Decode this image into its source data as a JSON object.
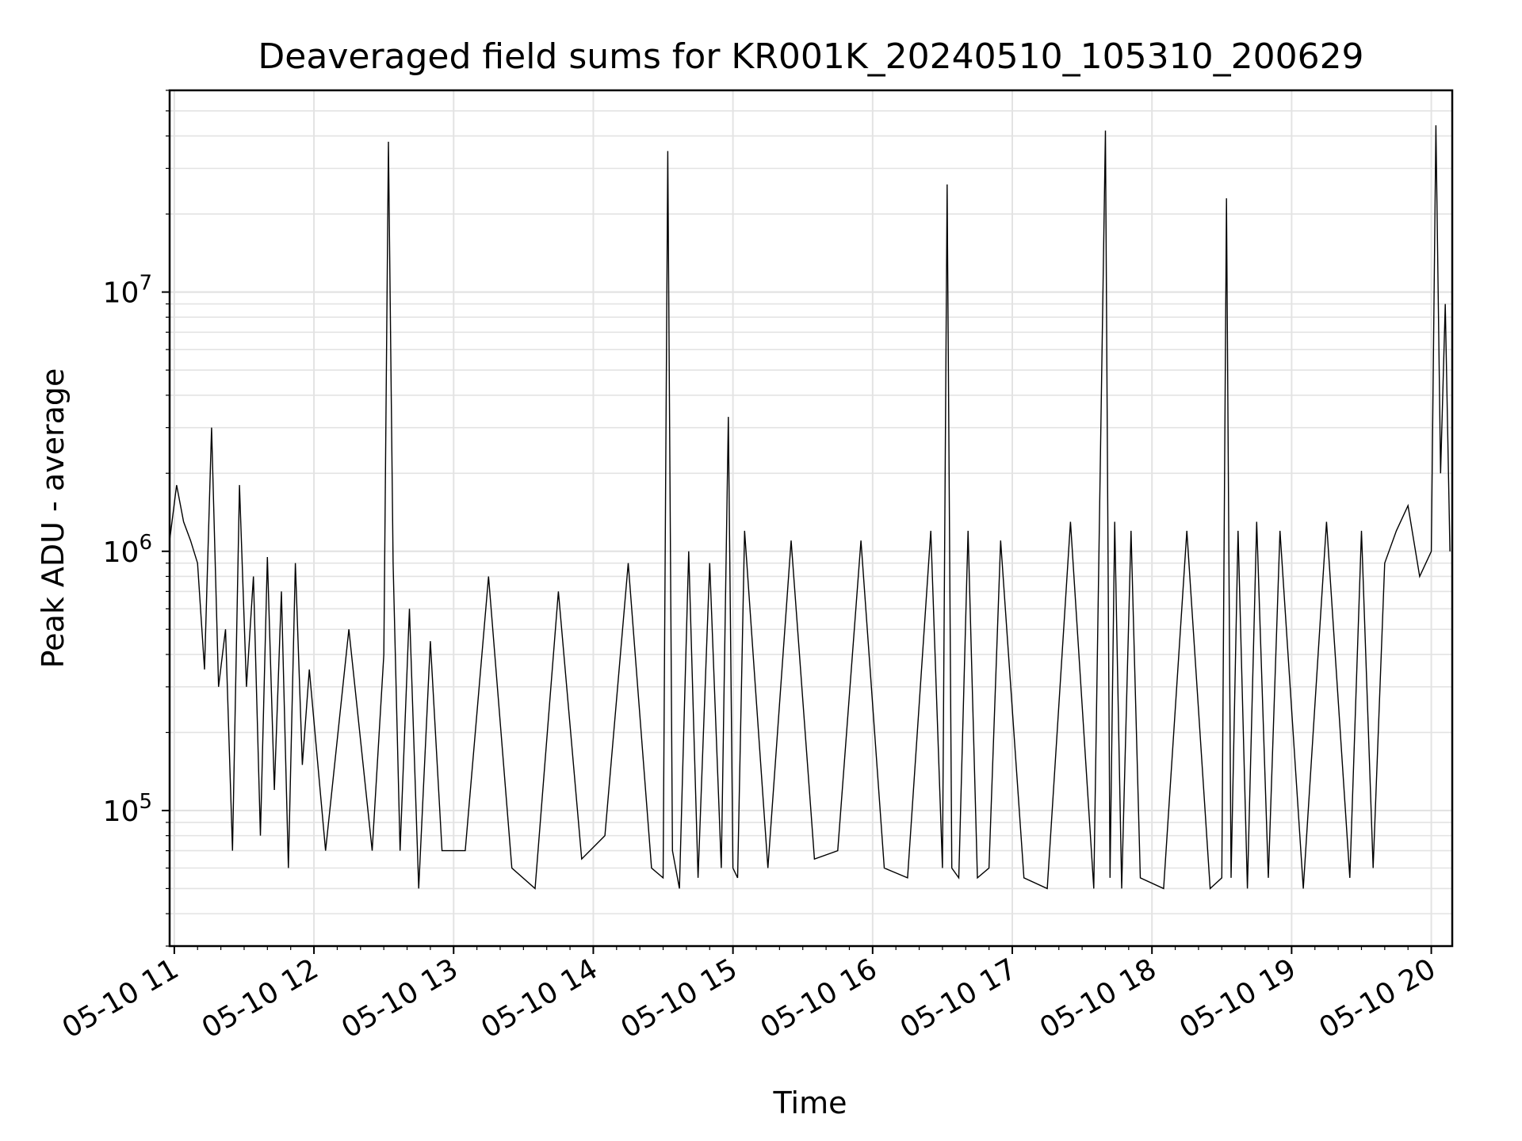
{
  "chart_data": {
    "type": "line",
    "title": "Deaveraged field sums for KR001K_20240510_105310_200629",
    "xlabel": "Time",
    "ylabel": "Peak ADU - average",
    "yscale": "log",
    "ylim": [
      30000,
      60000000
    ],
    "xlim": [
      "2024-05-10T10:58",
      "2024-05-10T20:09"
    ],
    "grid": true,
    "line_color": "#000000",
    "x_ticks": [
      {
        "label": "05-10 11",
        "hour": 11
      },
      {
        "label": "05-10 12",
        "hour": 12
      },
      {
        "label": "05-10 13",
        "hour": 13
      },
      {
        "label": "05-10 14",
        "hour": 14
      },
      {
        "label": "05-10 15",
        "hour": 15
      },
      {
        "label": "05-10 16",
        "hour": 16
      },
      {
        "label": "05-10 17",
        "hour": 17
      },
      {
        "label": "05-10 18",
        "hour": 18
      },
      {
        "label": "05-10 19",
        "hour": 19
      },
      {
        "label": "05-10 20",
        "hour": 20
      }
    ],
    "y_ticks": [
      {
        "base": "10",
        "exp": "5",
        "value": 100000
      },
      {
        "base": "10",
        "exp": "6",
        "value": 1000000
      },
      {
        "base": "10",
        "exp": "7",
        "value": 10000000
      }
    ],
    "series": [
      {
        "x": [
          "10:58",
          "11:01",
          "11:04",
          "11:07",
          "11:10",
          "11:13",
          "11:16",
          "11:19",
          "11:22",
          "11:25",
          "11:28",
          "11:31",
          "11:34",
          "11:37",
          "11:40",
          "11:43",
          "11:46",
          "11:49",
          "11:52",
          "11:55",
          "11:58",
          "12:05",
          "12:15",
          "12:25",
          "12:30",
          "12:32",
          "12:34",
          "12:37",
          "12:41",
          "12:45",
          "12:50",
          "12:55",
          "13:05",
          "13:15",
          "13:25",
          "13:35",
          "13:45",
          "13:55",
          "14:05",
          "14:15",
          "14:25",
          "14:30",
          "14:32",
          "14:34",
          "14:37",
          "14:41",
          "14:45",
          "14:50",
          "14:55",
          "14:58",
          "15:00",
          "15:02",
          "15:05",
          "15:15",
          "15:25",
          "15:35",
          "15:45",
          "15:55",
          "16:05",
          "16:15",
          "16:25",
          "16:30",
          "16:32",
          "16:34",
          "16:37",
          "16:41",
          "16:45",
          "16:50",
          "16:55",
          "17:05",
          "17:15",
          "17:25",
          "17:35",
          "17:40",
          "17:42",
          "17:44",
          "17:47",
          "17:51",
          "17:55",
          "18:05",
          "18:15",
          "18:25",
          "18:30",
          "18:32",
          "18:34",
          "18:37",
          "18:41",
          "18:45",
          "18:50",
          "18:55",
          "19:05",
          "19:15",
          "19:25",
          "19:30",
          "19:35",
          "19:40",
          "19:45",
          "19:50",
          "19:55",
          "20:00",
          "20:02",
          "20:04",
          "20:06",
          "20:08"
        ],
        "y": [
          1100000,
          1800000,
          1300000,
          1100000,
          900000,
          350000,
          3000000,
          300000,
          500000,
          70000,
          1800000,
          300000,
          800000,
          80000,
          950000,
          120000,
          700000,
          60000,
          900000,
          150000,
          350000,
          70000,
          500000,
          70000,
          400000,
          38000000,
          900000,
          70000,
          600000,
          50000,
          450000,
          70000,
          70000,
          800000,
          60000,
          50000,
          700000,
          65000,
          80000,
          900000,
          60000,
          55000,
          35000000,
          70000,
          50000,
          1000000,
          55000,
          900000,
          60000,
          3300000,
          60000,
          55000,
          1200000,
          60000,
          1100000,
          65000,
          70000,
          1100000,
          60000,
          55000,
          1200000,
          60000,
          26000000,
          60000,
          55000,
          1200000,
          55000,
          60000,
          1100000,
          55000,
          50000,
          1300000,
          50000,
          42000000,
          55000,
          1300000,
          50000,
          1200000,
          55000,
          50000,
          1200000,
          50000,
          55000,
          23000000,
          55000,
          1200000,
          50000,
          1300000,
          55000,
          1200000,
          50000,
          1300000,
          55000,
          1200000,
          60000,
          900000,
          1200000,
          1500000,
          800000,
          1000000,
          44000000,
          2000000,
          9000000,
          1000000
        ]
      }
    ]
  }
}
